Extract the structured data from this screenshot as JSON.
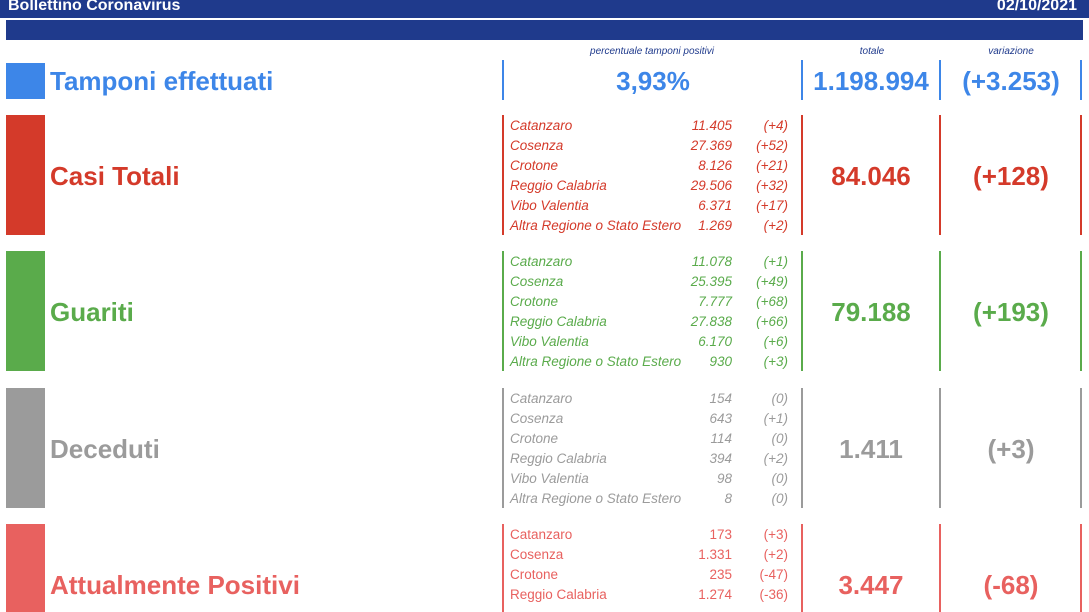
{
  "header": {
    "title": "Bollettino Coronavirus",
    "date": "02/10/2021"
  },
  "columns": {
    "positivity_label": "percentuale tamponi positivi",
    "total_label": "totale",
    "variation_label": "variazione"
  },
  "colors": {
    "navy": "#1f3a8c",
    "blue": "#3d86e8",
    "red": "#d43a2a",
    "green": "#5aab4b",
    "gray": "#9b9b9b",
    "pink": "#e8615f"
  },
  "tamponi": {
    "label": "Tamponi effettuati",
    "positivity": "3,93%",
    "total": "1.198.994",
    "variation": "(+3.253)"
  },
  "casi": {
    "label": "Casi Totali",
    "total": "84.046",
    "variation": "(+128)",
    "rows": [
      {
        "name": "Catanzaro",
        "value": "11.405",
        "delta": "(+4)"
      },
      {
        "name": "Cosenza",
        "value": "27.369",
        "delta": "(+52)"
      },
      {
        "name": "Crotone",
        "value": "8.126",
        "delta": "(+21)"
      },
      {
        "name": "Reggio Calabria",
        "value": "29.506",
        "delta": "(+32)"
      },
      {
        "name": "Vibo Valentia",
        "value": "6.371",
        "delta": "(+17)"
      },
      {
        "name": "Altra Regione o Stato Estero",
        "value": "1.269",
        "delta": "(+2)"
      }
    ]
  },
  "guariti": {
    "label": "Guariti",
    "total": "79.188",
    "variation": "(+193)",
    "rows": [
      {
        "name": "Catanzaro",
        "value": "11.078",
        "delta": "(+1)"
      },
      {
        "name": "Cosenza",
        "value": "25.395",
        "delta": "(+49)"
      },
      {
        "name": "Crotone",
        "value": "7.777",
        "delta": "(+68)"
      },
      {
        "name": "Reggio Calabria",
        "value": "27.838",
        "delta": "(+66)"
      },
      {
        "name": "Vibo Valentia",
        "value": "6.170",
        "delta": "(+6)"
      },
      {
        "name": "Altra Regione o Stato Estero",
        "value": "930",
        "delta": "(+3)"
      }
    ]
  },
  "deceduti": {
    "label": "Deceduti",
    "total": "1.411",
    "variation": "(+3)",
    "rows": [
      {
        "name": "Catanzaro",
        "value": "154",
        "delta": "(0)"
      },
      {
        "name": "Cosenza",
        "value": "643",
        "delta": "(+1)"
      },
      {
        "name": "Crotone",
        "value": "114",
        "delta": "(0)"
      },
      {
        "name": "Reggio Calabria",
        "value": "394",
        "delta": "(+2)"
      },
      {
        "name": "Vibo Valentia",
        "value": "98",
        "delta": "(0)"
      },
      {
        "name": "Altra Regione o Stato Estero",
        "value": "8",
        "delta": "(0)"
      }
    ]
  },
  "positivi": {
    "label": "Attualmente Positivi",
    "total": "3.447",
    "variation": "(-68)",
    "rows": [
      {
        "name": "Catanzaro",
        "value": "173",
        "delta": "(+3)"
      },
      {
        "name": "Cosenza",
        "value": "1.331",
        "delta": "(+2)"
      },
      {
        "name": "Crotone",
        "value": "235",
        "delta": "(-47)"
      },
      {
        "name": "Reggio Calabria",
        "value": "1.274",
        "delta": "(-36)"
      }
    ]
  }
}
